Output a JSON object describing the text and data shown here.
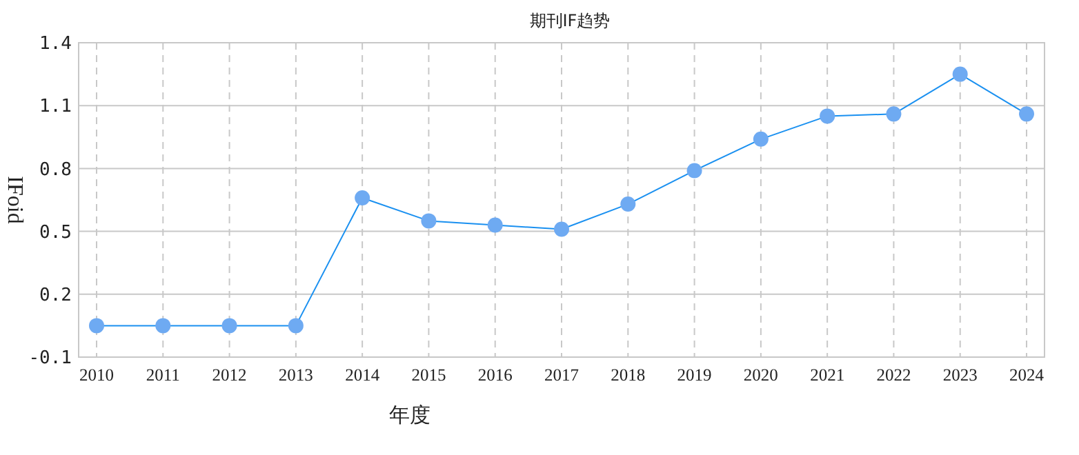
{
  "chart_data": {
    "type": "line",
    "title": "期刊IF趋势",
    "xlabel": "年度",
    "ylabel": "IFoid",
    "categories": [
      "2010",
      "2011",
      "2012",
      "2013",
      "2014",
      "2015",
      "2016",
      "2017",
      "2018",
      "2019",
      "2020",
      "2021",
      "2022",
      "2023",
      "2024"
    ],
    "series": [
      {
        "color": "#1a90f0",
        "values": [
          0.05,
          0.05,
          0.05,
          0.05,
          0.66,
          0.55,
          0.53,
          0.51,
          0.63,
          0.79,
          0.94,
          1.05,
          1.06,
          1.25,
          1.06
        ]
      }
    ],
    "ylim": [
      -0.1,
      1.4
    ],
    "yticks": [
      -0.1,
      0.2,
      0.5,
      0.8,
      1.1,
      1.4
    ],
    "grid": true,
    "marker": "circle",
    "line_style": "solid"
  }
}
